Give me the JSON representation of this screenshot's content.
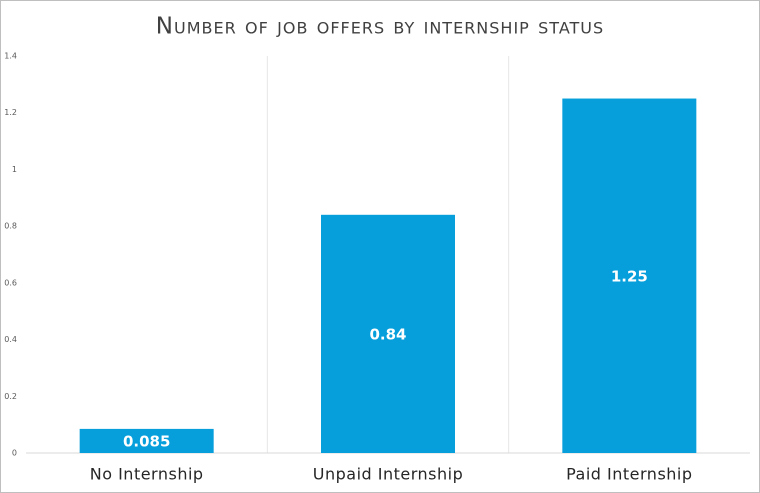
{
  "chart_data": {
    "type": "bar",
    "title": "Number of job offers by internship status",
    "categories": [
      "No Internship",
      "Unpaid Internship",
      "Paid Internship"
    ],
    "values": [
      0.085,
      0.84,
      1.25
    ],
    "color": "#069fdc",
    "ylim": [
      0,
      1.4
    ],
    "yticks": [
      0,
      0.2,
      0.4,
      0.6,
      0.8,
      1,
      1.2,
      1.4
    ]
  }
}
